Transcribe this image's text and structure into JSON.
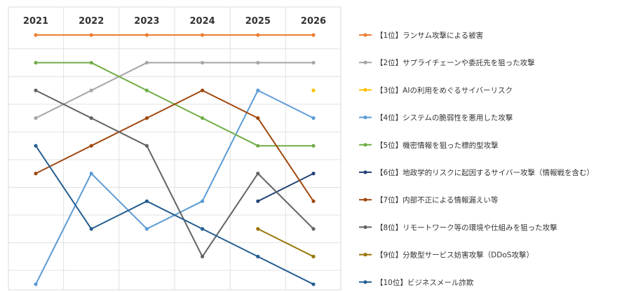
{
  "chart_data": {
    "type": "line",
    "title": "",
    "xlabel": "",
    "ylabel": "",
    "x": [
      "2021",
      "2022",
      "2023",
      "2024",
      "2025",
      "2026"
    ],
    "ylim": [
      1,
      10
    ],
    "y_inverted": true,
    "grid": true,
    "legend_position": "right",
    "series": [
      {
        "name": "【1位】ランサム攻撃による被害",
        "color": "#ED7D31",
        "values": [
          1,
          1,
          1,
          1,
          1,
          1
        ]
      },
      {
        "name": "【2位】サプライチェーンや委託先を狙った攻撃",
        "color": "#A5A5A5",
        "values": [
          4,
          3,
          2,
          2,
          2,
          2
        ]
      },
      {
        "name": "【3位】AIの利用をめぐるサイバーリスク",
        "color": "#FFC000",
        "values": [
          null,
          null,
          null,
          null,
          null,
          3
        ]
      },
      {
        "name": "【4位】システムの脆弱性を悪用した攻撃",
        "color": "#5B9BD5",
        "values": [
          10,
          6,
          8,
          7,
          3,
          4
        ]
      },
      {
        "name": "【5位】機密情報を狙った標的型攻撃",
        "color": "#70AD47",
        "values": [
          2,
          2,
          3,
          4,
          5,
          5
        ]
      },
      {
        "name": "【6位】地政学的リスクに起因するサイバー攻撃（情報戦を含む）",
        "color": "#264478",
        "values": [
          null,
          null,
          null,
          null,
          7,
          6
        ]
      },
      {
        "name": "【7位】内部不正による情報漏えい等",
        "color": "#9E480E",
        "values": [
          6,
          5,
          4,
          3,
          4,
          7
        ]
      },
      {
        "name": "【8位】リモートワーク等の環境や仕組みを狙った攻撃",
        "color": "#636363",
        "values": [
          3,
          4,
          5,
          9,
          6,
          8
        ]
      },
      {
        "name": "【9位】分散型サービス妨害攻撃（DDoS攻撃）",
        "color": "#997300",
        "values": [
          null,
          null,
          null,
          null,
          8,
          9
        ]
      },
      {
        "name": "【10位】ビジネスメール詐欺",
        "color": "#255E91",
        "values": [
          5,
          8,
          7,
          8,
          9,
          10
        ]
      }
    ]
  }
}
